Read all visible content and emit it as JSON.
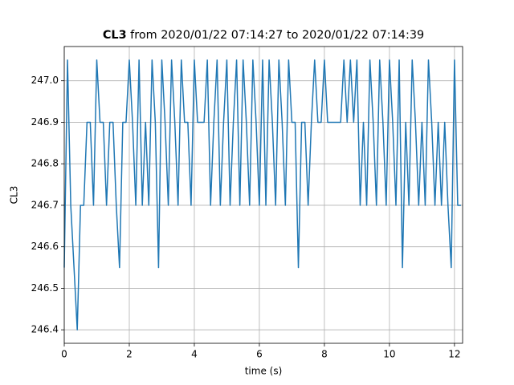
{
  "chart_data": {
    "type": "line",
    "title_bold": "CL3",
    "title": "from 2020/01/22 07:14:27 to 2020/01/22 07:14:39",
    "x_label": "time (s)",
    "y_label": "CL3",
    "xlim": [
      0,
      12.25
    ],
    "ylim": [
      246.3675,
      247.0825
    ],
    "xticks": [
      0,
      2,
      4,
      6,
      8,
      10,
      12
    ],
    "yticks": [
      246.4,
      246.5,
      246.6,
      246.7,
      246.8,
      246.9,
      {
        "value": 247,
        "label": "247.0"
      }
    ],
    "grid": true,
    "x": [
      0.0,
      0.1,
      0.2,
      0.3,
      0.4,
      0.5,
      0.6,
      0.7,
      0.8,
      0.9,
      1.0,
      1.1,
      1.2,
      1.3,
      1.4,
      1.5,
      1.6,
      1.7,
      1.8,
      1.9,
      2.0,
      2.1,
      2.2,
      2.3,
      2.4,
      2.5,
      2.6,
      2.7,
      2.8,
      2.9,
      3.0,
      3.1,
      3.2,
      3.3,
      3.4,
      3.5,
      3.6,
      3.7,
      3.8,
      3.9,
      4.0,
      4.1,
      4.2,
      4.3,
      4.4,
      4.5,
      4.6,
      4.7,
      4.8,
      4.9,
      5.0,
      5.1,
      5.2,
      5.3,
      5.4,
      5.5,
      5.6,
      5.7,
      5.8,
      5.9,
      6.0,
      6.1,
      6.2,
      6.3,
      6.4,
      6.5,
      6.6,
      6.7,
      6.8,
      6.9,
      7.0,
      7.1,
      7.2,
      7.3,
      7.4,
      7.5,
      7.6,
      7.7,
      7.8,
      7.9,
      8.0,
      8.1,
      8.2,
      8.3,
      8.4,
      8.5,
      8.6,
      8.7,
      8.8,
      8.9,
      9.0,
      9.1,
      9.2,
      9.3,
      9.4,
      9.5,
      9.6,
      9.7,
      9.8,
      9.9,
      10.0,
      10.1,
      10.2,
      10.3,
      10.4,
      10.5,
      10.6,
      10.7,
      10.8,
      10.9,
      11.0,
      11.1,
      11.2,
      11.3,
      11.4,
      11.5,
      11.6,
      11.7,
      11.8,
      11.9,
      12.0,
      12.1,
      12.2
    ],
    "series": [
      {
        "color": "#1f77b4",
        "values": [
          246.55,
          247.05,
          246.7,
          246.55,
          246.4,
          246.7,
          246.7,
          246.9,
          246.9,
          246.7,
          247.05,
          246.9,
          246.9,
          246.7,
          246.9,
          246.9,
          246.7,
          246.55,
          246.9,
          246.9,
          247.05,
          246.9,
          246.7,
          247.05,
          246.7,
          246.9,
          246.7,
          247.05,
          246.9,
          246.55,
          247.05,
          246.9,
          246.7,
          247.05,
          246.9,
          246.7,
          247.05,
          246.9,
          246.9,
          246.7,
          247.05,
          246.9,
          246.9,
          246.9,
          247.05,
          246.7,
          246.9,
          247.05,
          246.7,
          246.9,
          247.05,
          246.7,
          246.9,
          247.05,
          246.7,
          247.05,
          246.9,
          246.7,
          247.05,
          246.9,
          246.7,
          247.05,
          246.7,
          247.05,
          246.9,
          246.7,
          247.05,
          246.9,
          246.7,
          247.05,
          246.9,
          246.9,
          246.55,
          246.9,
          246.9,
          246.7,
          246.9,
          247.05,
          246.9,
          246.9,
          247.05,
          246.9,
          246.9,
          246.9,
          246.9,
          246.9,
          247.05,
          246.9,
          247.05,
          246.9,
          247.05,
          246.7,
          246.9,
          246.7,
          247.05,
          246.9,
          246.7,
          247.05,
          246.9,
          246.7,
          247.05,
          246.9,
          246.7,
          247.05,
          246.55,
          246.9,
          246.7,
          247.05,
          246.9,
          246.7,
          246.9,
          246.7,
          247.05,
          246.9,
          246.7,
          246.9,
          246.7,
          246.9,
          246.7,
          246.55,
          247.05,
          246.7,
          246.7
        ]
      }
    ]
  }
}
